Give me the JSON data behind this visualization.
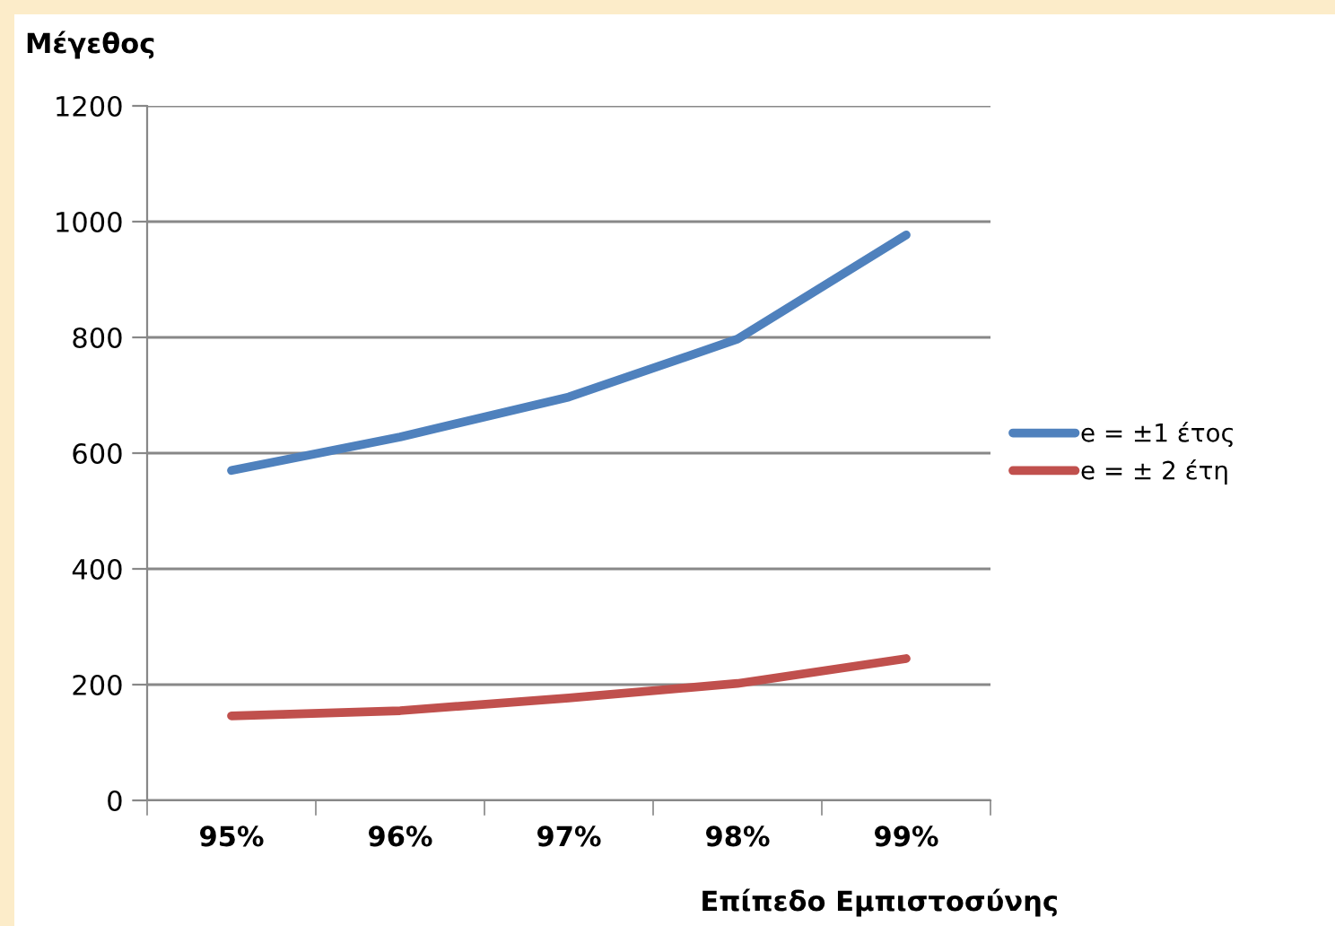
{
  "chart_data": {
    "type": "line",
    "ylabel": "Μέγεθος",
    "xlabel": "Επίπεδο Εμπιστοσύνης",
    "categories": [
      "95%",
      "96%",
      "97%",
      "98%",
      "99%"
    ],
    "series": [
      {
        "name": "e = ±1 έτος",
        "color": "#4f81bd",
        "values": [
          570,
          628,
          697,
          797,
          977
        ]
      },
      {
        "name": "e = ± 2 έτη",
        "color": "#c0504d",
        "values": [
          146,
          155,
          177,
          202,
          245
        ]
      }
    ],
    "ylim": [
      0,
      1200
    ],
    "yticks": [
      0,
      200,
      400,
      600,
      800,
      1000,
      1200
    ],
    "grid": "y",
    "legend": "right",
    "marker": "none",
    "line_style": "solid"
  }
}
